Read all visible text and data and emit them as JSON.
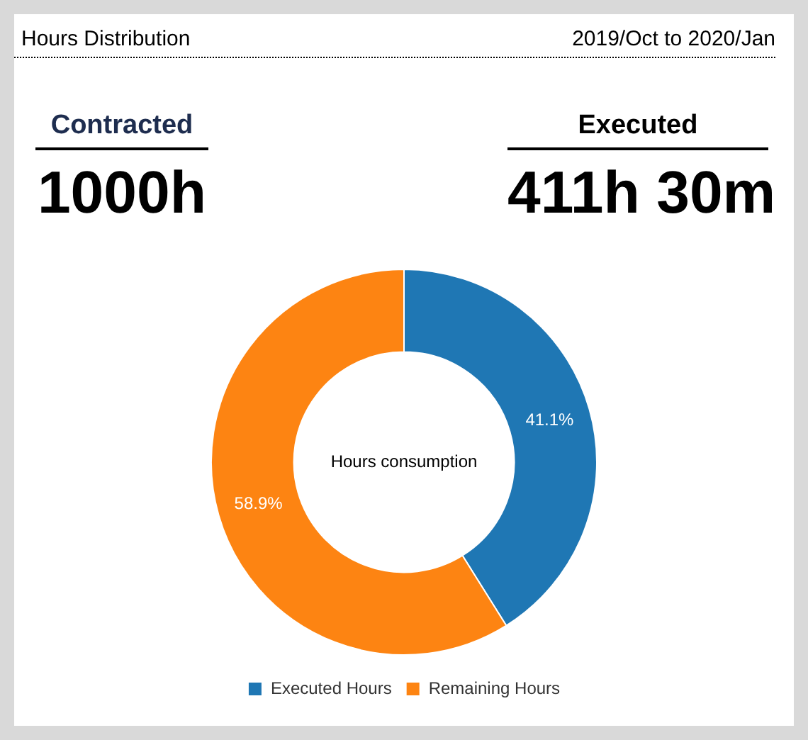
{
  "chart_data": {
    "type": "donut",
    "title": "Hours Distribution",
    "subtitle": "2019/Oct to 2020/Jan",
    "categories": [
      "Executed Hours",
      "Remaining Hours"
    ],
    "values": [
      41.1,
      58.9
    ],
    "colors": [
      "#1f77b4",
      "#fd8412"
    ],
    "value_labels": [
      "41.1%",
      "58.9%"
    ],
    "legend": "bottom",
    "annotations": [
      "Contracted",
      "1000h",
      "Executed",
      "411h 30m",
      "Hours consumption"
    ]
  }
}
